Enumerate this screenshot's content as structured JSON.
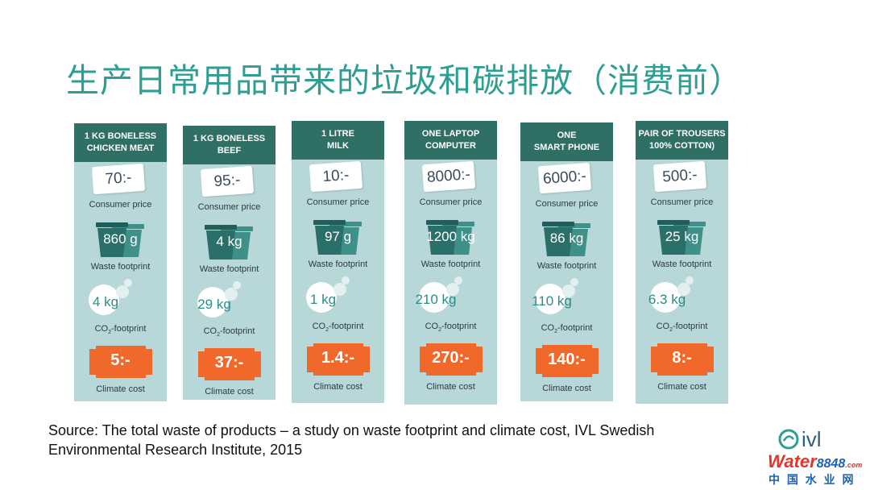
{
  "title": "生产日常用品带来的垃圾和碳排放（消费前）",
  "labels": {
    "consumer_price": "Consumer price",
    "waste_footprint": "Waste footprint",
    "co2_prefix": "CO",
    "co2_sub": "2",
    "co2_suffix": "-footprint",
    "climate_cost": "Climate cost"
  },
  "products": [
    {
      "head_line1": "1 KG BONELESS",
      "head_line2": "CHICKEN MEAT",
      "price": "70:-",
      "waste": "860 g",
      "co2": "4 kg",
      "cost": "5:-"
    },
    {
      "head_line1": "1 KG BONELESS",
      "head_line2": "BEEF",
      "price": "95:-",
      "waste": "4 kg",
      "co2": "29 kg",
      "cost": "37:-"
    },
    {
      "head_line1": "1 LITRE",
      "head_line2": "MILK",
      "price": "10:-",
      "waste": "97 g",
      "co2": "1 kg",
      "cost": "1.4:-"
    },
    {
      "head_line1": "ONE LAPTOP",
      "head_line2": "COMPUTER",
      "price": "8000:-",
      "waste": "1200 kg",
      "co2": "210 kg",
      "cost": "270:-"
    },
    {
      "head_line1": "ONE",
      "head_line2": "SMART PHONE",
      "price": "6000:-",
      "waste": "86 kg",
      "co2": "110 kg",
      "cost": "140:-"
    },
    {
      "head_line1": "PAIR OF TROUSERS",
      "head_line2": "100% COTTON)",
      "price": "500:-",
      "waste": "25 kg",
      "co2": "6.3 kg",
      "cost": "8:-"
    }
  ],
  "source_line1": "Source: The total waste of products – a study on waste footprint and climate cost, IVL Swedish",
  "source_line2": "Environmental Research Institute, 2015",
  "logos": {
    "ivl": "ivl",
    "water_brand": "Water",
    "water_num": "8848",
    "water_com": ".com",
    "water_cn": "中 国 水 业 网"
  },
  "colors": {
    "title": "#2e9e93",
    "card_bg": "#b8d7d8",
    "card_head": "#2f6f66",
    "bin": "#2a6f6a",
    "cost_badge": "#f0692a"
  }
}
